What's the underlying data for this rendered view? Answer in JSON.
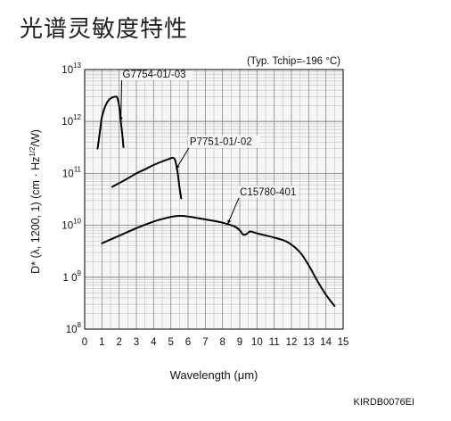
{
  "page": {
    "title": "光谱灵敏度特性",
    "doc_code": "KIRDB0076EI"
  },
  "chart_data": {
    "type": "line",
    "note": "(Typ. Tchip=-196 °C)",
    "xlabel": "Wavelength (μm)",
    "ylabel": "D* (λ, 1200, 1) (cm · Hz^1/2/W)",
    "xlim": [
      0,
      15
    ],
    "ylim": [
      100000000.0,
      10000000000000.0
    ],
    "y_scale": "log",
    "grid": true,
    "x_ticks": [
      "0",
      "1",
      "2",
      "3",
      "4",
      "5",
      "6",
      "7",
      "8",
      "9",
      "10",
      "11",
      "12",
      "13",
      "14",
      "15"
    ],
    "y_ticks": [
      {
        "base": "10",
        "exp": "8",
        "value": 100000000.0
      },
      {
        "base": "1 0",
        "exp": "9",
        "value": 1000000000.0
      },
      {
        "base": "10",
        "exp": "10",
        "value": 10000000000.0
      },
      {
        "base": "10",
        "exp": "11",
        "value": 100000000000.0
      },
      {
        "base": "10",
        "exp": "12",
        "value": 1000000000000.0
      },
      {
        "base": "10",
        "exp": "13",
        "value": 10000000000000.0
      }
    ],
    "series": [
      {
        "name": "G7754-01/-03",
        "color": "#000000",
        "points": [
          [
            0.75,
            300000000000.0
          ],
          [
            0.9,
            700000000000.0
          ],
          [
            1.0,
            1200000000000.0
          ],
          [
            1.2,
            2000000000000.0
          ],
          [
            1.4,
            2600000000000.0
          ],
          [
            1.6,
            2900000000000.0
          ],
          [
            1.8,
            3000000000000.0
          ],
          [
            1.9,
            2850000000000.0
          ],
          [
            2.0,
            2000000000000.0
          ],
          [
            2.1,
            1000000000000.0
          ],
          [
            2.2,
            500000000000.0
          ],
          [
            2.25,
            320000000000.0
          ]
        ],
        "label_anchor": [
          2.2,
          7000000000000.0
        ],
        "arrow_tip": [
          2.1,
          1000000000000.0
        ]
      },
      {
        "name": "P7751-01/-02",
        "color": "#000000",
        "points": [
          [
            1.6,
            55000000000.0
          ],
          [
            2.0,
            65000000000.0
          ],
          [
            2.5,
            80000000000.0
          ],
          [
            3.0,
            100000000000.0
          ],
          [
            3.5,
            120000000000.0
          ],
          [
            4.0,
            145000000000.0
          ],
          [
            4.5,
            170000000000.0
          ],
          [
            4.9,
            190000000000.0
          ],
          [
            5.1,
            200000000000.0
          ],
          [
            5.25,
            180000000000.0
          ],
          [
            5.4,
            100000000000.0
          ],
          [
            5.5,
            55000000000.0
          ],
          [
            5.6,
            33000000000.0
          ]
        ],
        "label_anchor": [
          6.1,
          350000000000.0
        ],
        "arrow_tip": [
          5.3,
          120000000000.0
        ]
      },
      {
        "name": "C15780-401",
        "color": "#000000",
        "points": [
          [
            1.0,
            4500000000.0
          ],
          [
            2.0,
            6300000000.0
          ],
          [
            3.0,
            8800000000.0
          ],
          [
            4.0,
            11800000000.0
          ],
          [
            5.0,
            14500000000.0
          ],
          [
            5.5,
            15200000000.0
          ],
          [
            6.0,
            14800000000.0
          ],
          [
            7.0,
            13000000000.0
          ],
          [
            8.0,
            11200000000.0
          ],
          [
            8.7,
            9500000000.0
          ],
          [
            9.0,
            8000000000.0
          ],
          [
            9.2,
            6600000000.0
          ],
          [
            9.4,
            6800000000.0
          ],
          [
            9.6,
            7600000000.0
          ],
          [
            10.0,
            7000000000.0
          ],
          [
            11.0,
            5800000000.0
          ],
          [
            11.8,
            4700000000.0
          ],
          [
            12.5,
            3000000000.0
          ],
          [
            13.0,
            1700000000.0
          ],
          [
            13.5,
            850000000.0
          ],
          [
            14.0,
            460000000.0
          ],
          [
            14.5,
            280000000.0
          ]
        ],
        "label_anchor": [
          9.0,
          38000000000.0
        ],
        "arrow_tip": [
          8.3,
          10500000000.0
        ]
      }
    ]
  }
}
